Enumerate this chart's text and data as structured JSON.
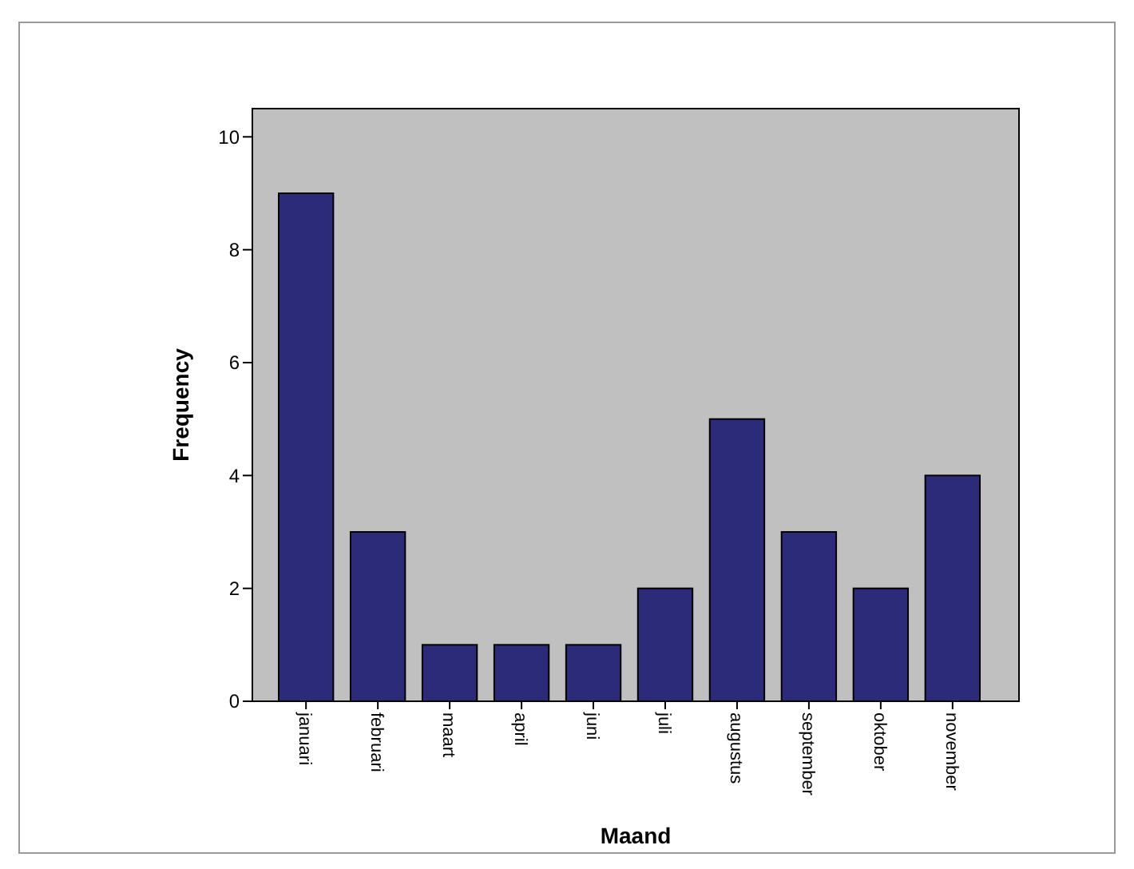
{
  "chart_data": {
    "type": "bar",
    "xlabel": "Maand",
    "ylabel": "Frequency",
    "categories": [
      "januari",
      "februari",
      "maart",
      "april",
      "juni",
      "juli",
      "augustus",
      "september",
      "oktober",
      "november"
    ],
    "values": [
      9,
      3,
      1,
      1,
      1,
      2,
      5,
      3,
      2,
      4
    ],
    "color": "#2b2b7a",
    "ylim": [
      0,
      10.5
    ],
    "yticks": [
      0,
      2,
      4,
      6,
      8,
      10
    ],
    "grid": false
  }
}
